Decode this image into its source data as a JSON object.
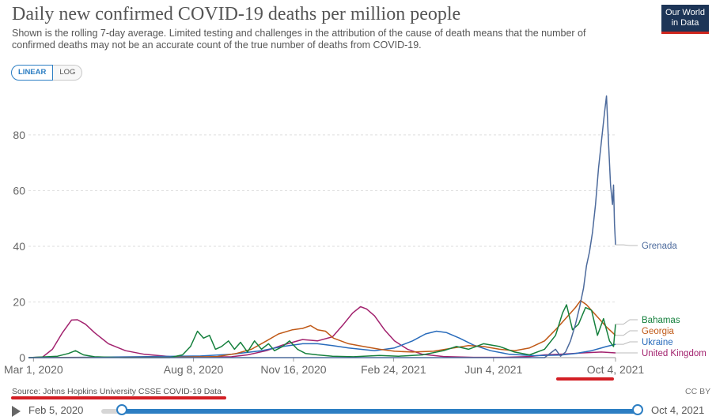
{
  "header": {
    "title": "Daily new confirmed COVID-19 deaths per million people",
    "subtitle": "Shown is the rolling 7-day average. Limited testing and challenges in the attribution of the cause of death means that the number of confirmed deaths may not be an accurate count of the true number of deaths from COVID-19.",
    "logo_line1": "Our World",
    "logo_line2": "in Data"
  },
  "scale_toggle": {
    "linear_label": "LINEAR",
    "log_label": "LOG",
    "selected": "linear"
  },
  "footer": {
    "source": "Source: Johns Hopkins University CSSE COVID-19 Data",
    "license": "CC BY"
  },
  "timeline": {
    "start_label": "Feb 5, 2020",
    "end_label": "Oct 4, 2021",
    "range_start": "2020-02-05",
    "range_end": "2021-10-04",
    "played": false
  },
  "annotations": {
    "red_underline_targets": [
      "Oct 4, 2021",
      "Source: Johns Hopkins University CSSE COVID-19 Data"
    ],
    "color": "#d31e24"
  },
  "chart_data": {
    "type": "line",
    "title": "Daily new confirmed COVID-19 deaths per million people",
    "xlabel": "",
    "ylabel": "",
    "ylim": [
      0,
      95
    ],
    "xlim": [
      "2020-02-25",
      "2021-10-04"
    ],
    "yticks": [
      0,
      20,
      40,
      60,
      80
    ],
    "xticks": [
      "2020-03-01",
      "2020-08-08",
      "2020-11-16",
      "2021-02-24",
      "2021-06-04",
      "2021-10-04"
    ],
    "xtick_labels": [
      "Mar 1, 2020",
      "Aug 8, 2020",
      "Nov 16, 2020",
      "Feb 24, 2021",
      "Jun 4, 2021",
      "Oct 4, 2021"
    ],
    "grid": "horizontal-dashed",
    "legend": "line-end-labels",
    "series": [
      {
        "name": "United Kingdom",
        "color": "#a2226e",
        "points": [
          [
            "2020-02-25",
            0
          ],
          [
            "2020-03-10",
            0.2
          ],
          [
            "2020-03-20",
            3
          ],
          [
            "2020-03-30",
            9
          ],
          [
            "2020-04-08",
            13.5
          ],
          [
            "2020-04-14",
            13.6
          ],
          [
            "2020-04-22",
            12
          ],
          [
            "2020-05-01",
            9
          ],
          [
            "2020-05-15",
            5
          ],
          [
            "2020-06-01",
            2.5
          ],
          [
            "2020-06-20",
            1.2
          ],
          [
            "2020-07-15",
            0.4
          ],
          [
            "2020-08-20",
            0.2
          ],
          [
            "2020-09-15",
            0.3
          ],
          [
            "2020-10-01",
            1
          ],
          [
            "2020-10-20",
            2.5
          ],
          [
            "2020-11-05",
            4.5
          ],
          [
            "2020-11-25",
            6.5
          ],
          [
            "2020-12-10",
            6
          ],
          [
            "2020-12-25",
            7.5
          ],
          [
            "2021-01-05",
            12
          ],
          [
            "2021-01-14",
            16
          ],
          [
            "2021-01-22",
            18.3
          ],
          [
            "2021-01-28",
            17.5
          ],
          [
            "2021-02-05",
            15
          ],
          [
            "2021-02-15",
            10
          ],
          [
            "2021-02-25",
            6
          ],
          [
            "2021-03-10",
            3
          ],
          [
            "2021-03-25",
            1.2
          ],
          [
            "2021-04-15",
            0.4
          ],
          [
            "2021-05-15",
            0.1
          ],
          [
            "2021-06-15",
            0.1
          ],
          [
            "2021-07-10",
            0.4
          ],
          [
            "2021-07-25",
            1
          ],
          [
            "2021-08-15",
            1.3
          ],
          [
            "2021-09-01",
            1.7
          ],
          [
            "2021-09-20",
            2
          ],
          [
            "2021-10-04",
            1.7
          ]
        ]
      },
      {
        "name": "Ukraine",
        "color": "#286bbb",
        "points": [
          [
            "2020-02-25",
            0
          ],
          [
            "2020-04-15",
            0.1
          ],
          [
            "2020-06-15",
            0.3
          ],
          [
            "2020-08-15",
            0.6
          ],
          [
            "2020-09-15",
            1.2
          ],
          [
            "2020-10-15",
            2.5
          ],
          [
            "2020-11-05",
            4
          ],
          [
            "2020-11-25",
            5
          ],
          [
            "2020-12-10",
            5
          ],
          [
            "2020-12-25",
            4.3
          ],
          [
            "2021-01-10",
            3.5
          ],
          [
            "2021-02-05",
            2.5
          ],
          [
            "2021-02-25",
            3.5
          ],
          [
            "2021-03-15",
            6
          ],
          [
            "2021-03-28",
            8.5
          ],
          [
            "2021-04-08",
            9.5
          ],
          [
            "2021-04-18",
            9
          ],
          [
            "2021-05-01",
            7
          ],
          [
            "2021-05-15",
            4.5
          ],
          [
            "2021-06-01",
            2.5
          ],
          [
            "2021-06-20",
            1.2
          ],
          [
            "2021-07-15",
            0.7
          ],
          [
            "2021-08-10",
            0.9
          ],
          [
            "2021-08-25",
            1.5
          ],
          [
            "2021-09-10",
            2.5
          ],
          [
            "2021-09-25",
            4
          ],
          [
            "2021-10-04",
            4.8
          ]
        ]
      },
      {
        "name": "Georgia",
        "color": "#c05917",
        "points": [
          [
            "2020-02-25",
            0
          ],
          [
            "2020-04-15",
            0.05
          ],
          [
            "2020-07-15",
            0.1
          ],
          [
            "2020-09-01",
            0.4
          ],
          [
            "2020-09-20",
            1.5
          ],
          [
            "2020-10-05",
            3
          ],
          [
            "2020-10-20",
            6
          ],
          [
            "2020-11-01",
            8.5
          ],
          [
            "2020-11-15",
            10
          ],
          [
            "2020-11-25",
            10.5
          ],
          [
            "2020-12-03",
            11.5
          ],
          [
            "2020-12-10",
            10
          ],
          [
            "2020-12-18",
            9.5
          ],
          [
            "2020-12-26",
            7
          ],
          [
            "2021-01-10",
            5
          ],
          [
            "2021-01-25",
            4
          ],
          [
            "2021-02-10",
            3
          ],
          [
            "2021-02-25",
            2.3
          ],
          [
            "2021-03-15",
            2
          ],
          [
            "2021-04-05",
            2.3
          ],
          [
            "2021-04-25",
            3.5
          ],
          [
            "2021-05-10",
            4.3
          ],
          [
            "2021-05-25",
            4
          ],
          [
            "2021-06-10",
            3
          ],
          [
            "2021-06-25",
            2.5
          ],
          [
            "2021-07-10",
            3.5
          ],
          [
            "2021-07-25",
            6
          ],
          [
            "2021-08-05",
            10
          ],
          [
            "2021-08-15",
            14
          ],
          [
            "2021-08-25",
            18
          ],
          [
            "2021-08-30",
            20.5
          ],
          [
            "2021-09-05",
            19
          ],
          [
            "2021-09-15",
            15
          ],
          [
            "2021-09-25",
            11
          ],
          [
            "2021-10-04",
            8
          ]
        ]
      },
      {
        "name": "Bahamas",
        "color": "#15803d",
        "points": [
          [
            "2020-02-25",
            0
          ],
          [
            "2020-03-25",
            0.5
          ],
          [
            "2020-04-05",
            1.5
          ],
          [
            "2020-04-12",
            2.5
          ],
          [
            "2020-04-20",
            1
          ],
          [
            "2020-05-01",
            0.3
          ],
          [
            "2020-06-01",
            0
          ],
          [
            "2020-07-15",
            0
          ],
          [
            "2020-07-28",
            1
          ],
          [
            "2020-08-05",
            4
          ],
          [
            "2020-08-12",
            9.5
          ],
          [
            "2020-08-18",
            7
          ],
          [
            "2020-08-24",
            8
          ],
          [
            "2020-08-30",
            3
          ],
          [
            "2020-09-05",
            4
          ],
          [
            "2020-09-12",
            6
          ],
          [
            "2020-09-18",
            3
          ],
          [
            "2020-09-24",
            5.5
          ],
          [
            "2020-10-01",
            2
          ],
          [
            "2020-10-08",
            6
          ],
          [
            "2020-10-15",
            3
          ],
          [
            "2020-10-22",
            5
          ],
          [
            "2020-10-28",
            2.5
          ],
          [
            "2020-11-05",
            4
          ],
          [
            "2020-11-12",
            6
          ],
          [
            "2020-11-20",
            3
          ],
          [
            "2020-11-28",
            1.5
          ],
          [
            "2020-12-10",
            1
          ],
          [
            "2020-12-25",
            0.5
          ],
          [
            "2021-01-15",
            0.3
          ],
          [
            "2021-02-10",
            0.8
          ],
          [
            "2021-03-01",
            0.5
          ],
          [
            "2021-03-25",
            1
          ],
          [
            "2021-04-15",
            2.5
          ],
          [
            "2021-04-28",
            4
          ],
          [
            "2021-05-10",
            3
          ],
          [
            "2021-05-25",
            5
          ],
          [
            "2021-06-10",
            4
          ],
          [
            "2021-06-25",
            2
          ],
          [
            "2021-07-10",
            1
          ],
          [
            "2021-07-25",
            3
          ],
          [
            "2021-08-05",
            8
          ],
          [
            "2021-08-12",
            16
          ],
          [
            "2021-08-16",
            19
          ],
          [
            "2021-08-22",
            10
          ],
          [
            "2021-08-28",
            12
          ],
          [
            "2021-09-04",
            18
          ],
          [
            "2021-09-10",
            17
          ],
          [
            "2021-09-16",
            8
          ],
          [
            "2021-09-22",
            14
          ],
          [
            "2021-09-28",
            6
          ],
          [
            "2021-10-02",
            4
          ],
          [
            "2021-10-04",
            12
          ]
        ]
      },
      {
        "name": "Grenada",
        "color": "#4c6a9c",
        "points": [
          [
            "2020-02-25",
            0
          ],
          [
            "2021-06-01",
            0
          ],
          [
            "2021-07-10",
            0
          ],
          [
            "2021-07-25",
            0
          ],
          [
            "2021-08-05",
            3
          ],
          [
            "2021-08-10",
            0.5
          ],
          [
            "2021-08-15",
            2
          ],
          [
            "2021-08-20",
            6
          ],
          [
            "2021-08-25",
            12
          ],
          [
            "2021-08-29",
            18
          ],
          [
            "2021-09-02",
            25
          ],
          [
            "2021-09-05",
            33
          ],
          [
            "2021-09-08",
            38
          ],
          [
            "2021-09-11",
            45
          ],
          [
            "2021-09-14",
            55
          ],
          [
            "2021-09-17",
            68
          ],
          [
            "2021-09-20",
            78
          ],
          [
            "2021-09-23",
            88
          ],
          [
            "2021-09-25",
            94
          ],
          [
            "2021-09-27",
            77
          ],
          [
            "2021-09-29",
            62
          ],
          [
            "2021-10-01",
            55
          ],
          [
            "2021-10-02",
            62
          ],
          [
            "2021-10-03",
            48
          ],
          [
            "2021-10-04",
            40.5
          ]
        ]
      }
    ]
  }
}
